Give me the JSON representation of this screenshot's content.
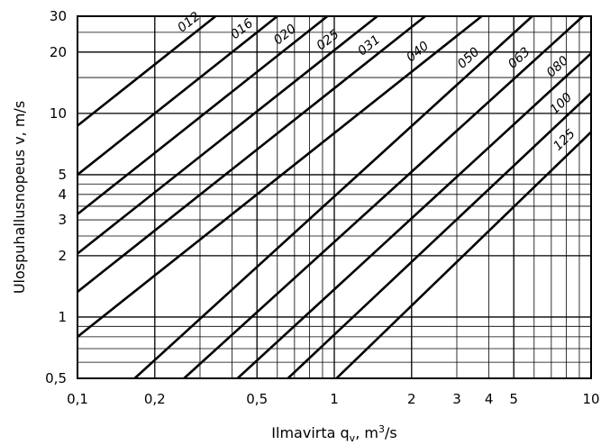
{
  "chart_data": {
    "type": "line",
    "title": "",
    "xlabel": "Ilmavirta q",
    "xlabel_sub": "v",
    "xlabel_unit_pre": ", m",
    "xlabel_sup": "3",
    "xlabel_unit_post": "/s",
    "ylabel": "Ulospuhallusnopeus v, m/s",
    "xscale": "log",
    "yscale": "log",
    "xlim": [
      0.1,
      10
    ],
    "ylim": [
      0.5,
      30
    ],
    "grid": true,
    "x_ticks": [
      {
        "value": 0.1,
        "label": "0,1"
      },
      {
        "value": 0.2,
        "label": "0,2"
      },
      {
        "value": 0.5,
        "label": "0,5"
      },
      {
        "value": 1,
        "label": "1"
      },
      {
        "value": 2,
        "label": "2"
      },
      {
        "value": 3,
        "label": "3"
      },
      {
        "value": 4,
        "label": "4"
      },
      {
        "value": 5,
        "label": "5"
      },
      {
        "value": 10,
        "label": "10"
      }
    ],
    "y_ticks": [
      {
        "value": 0.5,
        "label": "0,5"
      },
      {
        "value": 1,
        "label": "1"
      },
      {
        "value": 2,
        "label": "2"
      },
      {
        "value": 3,
        "label": "3"
      },
      {
        "value": 4,
        "label": "4"
      },
      {
        "value": 5,
        "label": "5"
      },
      {
        "value": 10,
        "label": "10"
      },
      {
        "value": 20,
        "label": "20"
      },
      {
        "value": 30,
        "label": "30"
      }
    ],
    "series": [
      {
        "name": "012",
        "x": [
          0.1,
          0.345
        ],
        "y": [
          8.7,
          30
        ]
      },
      {
        "name": "016",
        "x": [
          0.1,
          0.6
        ],
        "y": [
          5.0,
          30
        ]
      },
      {
        "name": "020",
        "x": [
          0.1,
          0.94
        ],
        "y": [
          3.2,
          30
        ]
      },
      {
        "name": "025",
        "x": [
          0.1,
          1.47
        ],
        "y": [
          2.05,
          30
        ]
      },
      {
        "name": "031",
        "x": [
          0.1,
          2.26
        ],
        "y": [
          1.33,
          30
        ]
      },
      {
        "name": "040",
        "x": [
          0.1,
          3.75
        ],
        "y": [
          0.8,
          30
        ]
      },
      {
        "name": "050",
        "x": [
          0.167,
          5.9
        ],
        "y": [
          0.5,
          30
        ]
      },
      {
        "name": "063",
        "x": [
          0.26,
          9.3
        ],
        "y": [
          0.5,
          30
        ]
      },
      {
        "name": "080",
        "x": [
          0.42,
          10
        ],
        "y": [
          0.5,
          19.7
        ]
      },
      {
        "name": "100",
        "x": [
          0.66,
          10
        ],
        "y": [
          0.5,
          12.6
        ]
      },
      {
        "name": "125",
        "x": [
          1.02,
          10
        ],
        "y": [
          0.5,
          8.1
        ]
      }
    ]
  }
}
